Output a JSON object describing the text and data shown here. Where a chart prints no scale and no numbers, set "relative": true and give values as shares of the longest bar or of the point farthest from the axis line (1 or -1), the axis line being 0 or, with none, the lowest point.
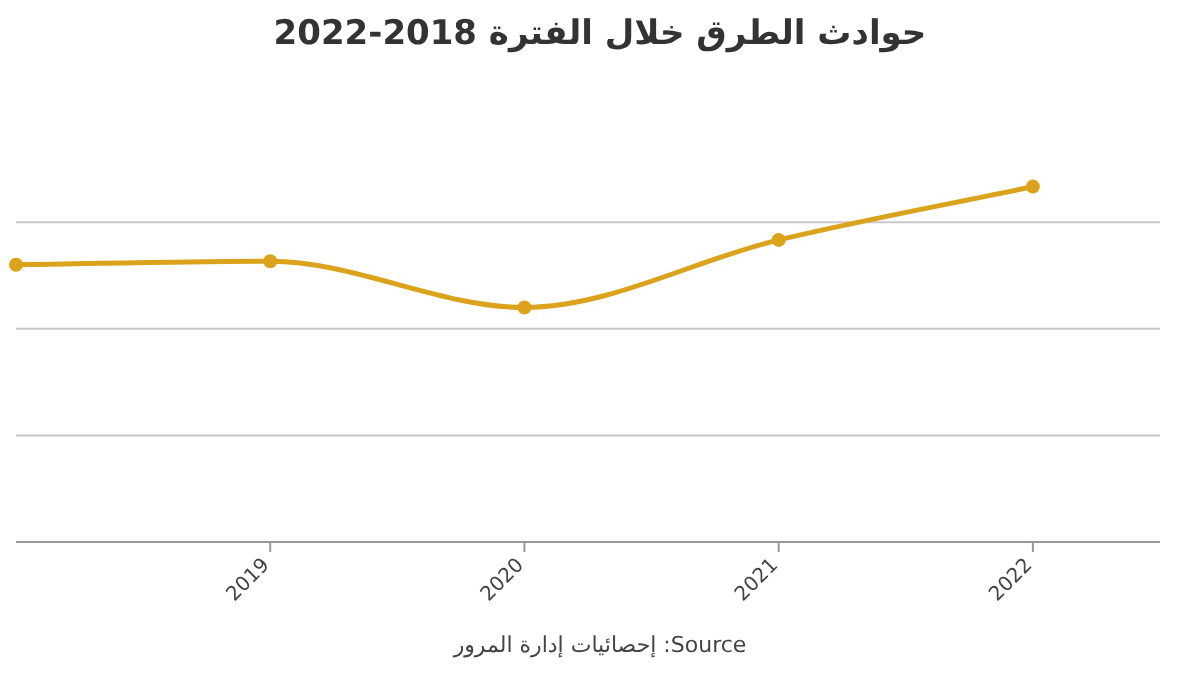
{
  "chart_data": {
    "type": "line",
    "title": "حوادث الطرق خلال الفترة 2018-2022",
    "x": [
      2018,
      2019,
      2020,
      2021,
      2022
    ],
    "series": [
      {
        "color": "#dba21c",
        "values": [
          0.78,
          0.79,
          0.66,
          0.85,
          1
        ]
      }
    ],
    "relative": true,
    "xlim": [
      2018,
      2022.5
    ],
    "xticks": [
      2019,
      2020,
      2021,
      2022
    ],
    "grid": "y",
    "marker": "circle",
    "line_style": "solid",
    "annotations": [
      "Source: إحصائيات إدارة المرور"
    ]
  }
}
